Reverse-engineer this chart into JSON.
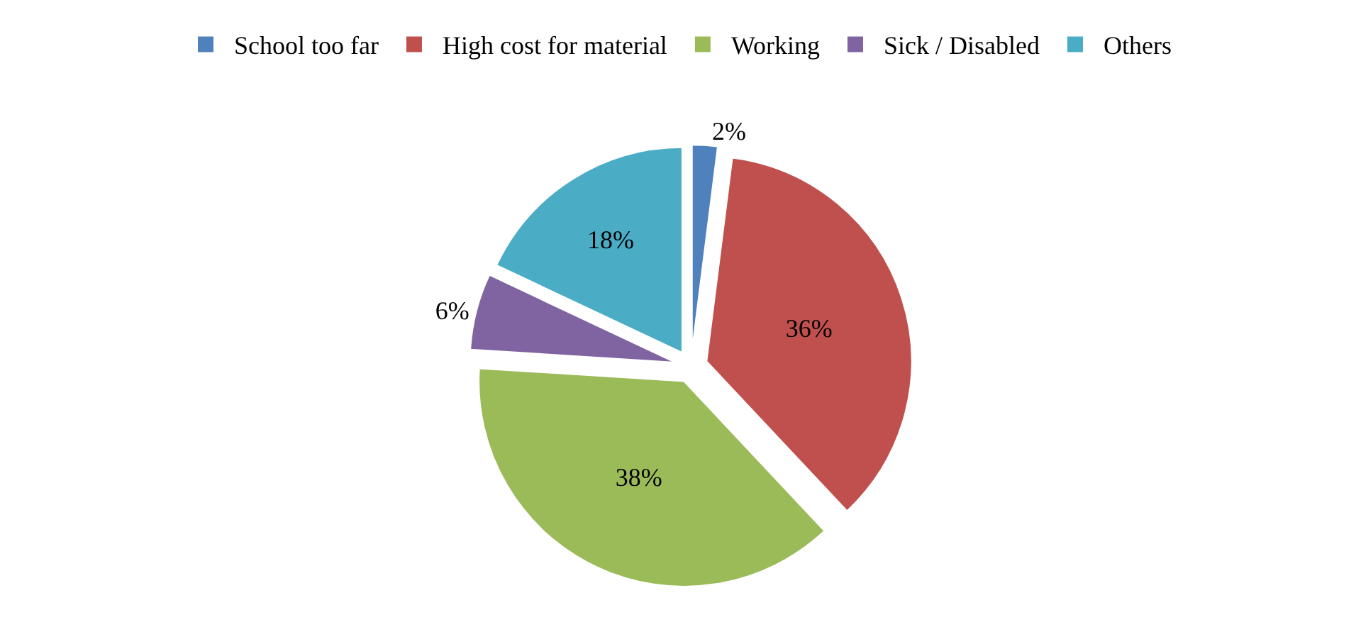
{
  "chart_data": {
    "type": "pie",
    "categories": [
      "School too far",
      "High cost for material",
      "Working",
      "Sick / Disabled",
      "Others"
    ],
    "values": [
      2,
      36,
      38,
      6,
      18
    ],
    "value_labels": [
      "2%",
      "36%",
      "38%",
      "6%",
      "18%"
    ],
    "colors": [
      "#4f81bd",
      "#c0504d",
      "#9bbb59",
      "#8064a2",
      "#4bacc6"
    ],
    "legend": "top"
  }
}
